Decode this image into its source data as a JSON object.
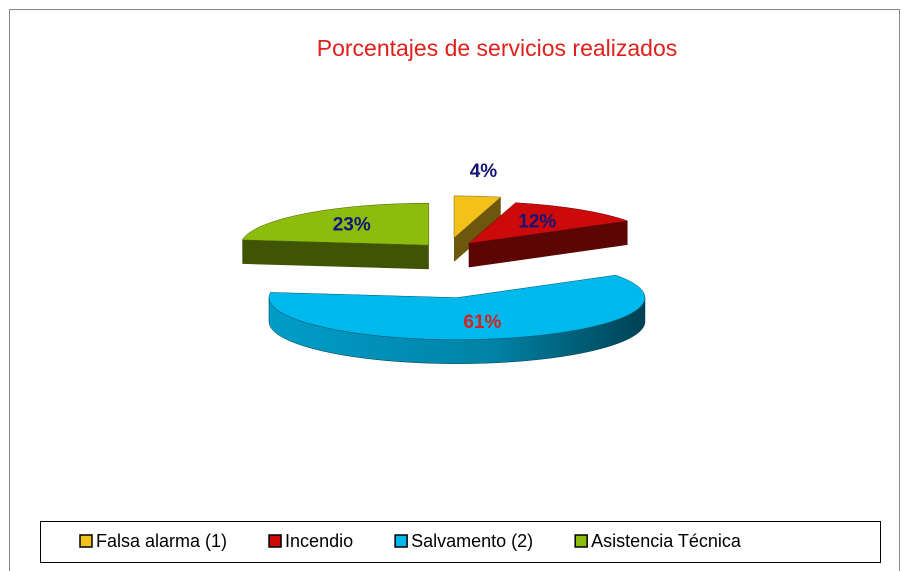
{
  "chart_data": {
    "type": "pie3d",
    "title": "Porcentajes de servicios realizados",
    "categories": [
      "Falsa alarma (1)",
      "Incendio",
      "Salvamento (2)",
      "Asistencia Técnica"
    ],
    "values": [
      4,
      12,
      61,
      23
    ],
    "value_labels": [
      "4%",
      "12%",
      "61%",
      "23%"
    ],
    "colors": [
      "#f2c21b",
      "#cc0a0a",
      "#00b9ec",
      "#8cbc0c"
    ],
    "label_colors": [
      "#141478",
      "#141478",
      "#d42020",
      "#141478"
    ],
    "legend": "bottom"
  }
}
